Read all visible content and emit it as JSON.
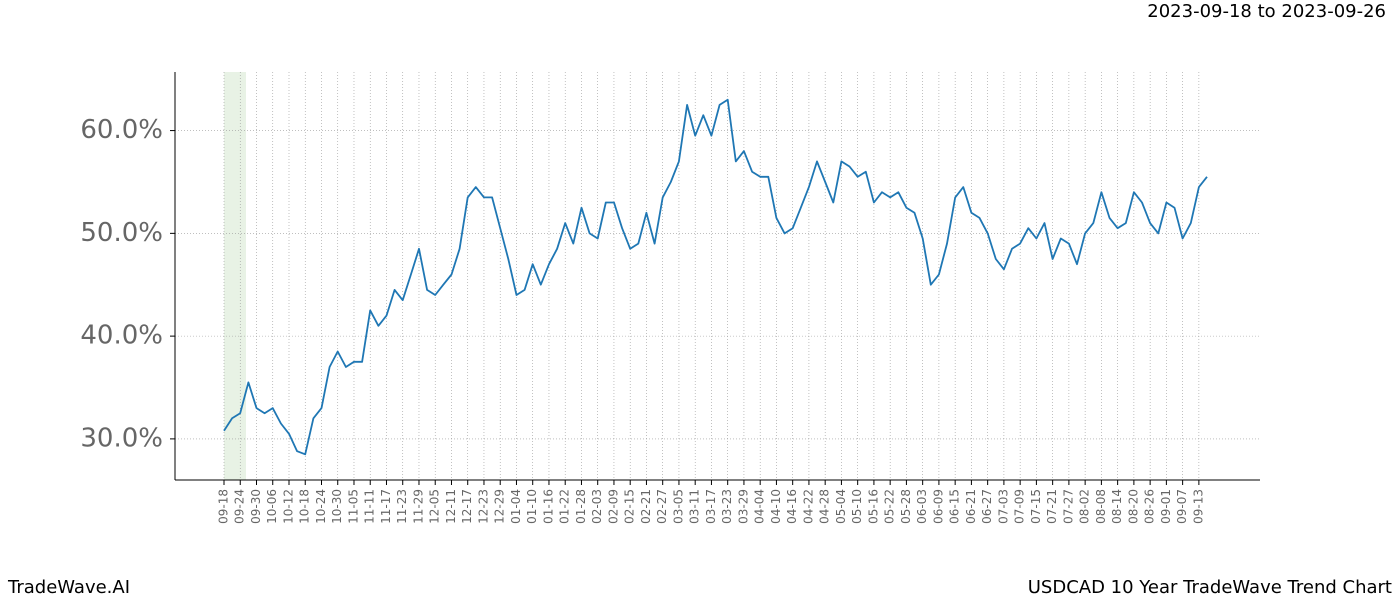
{
  "chart_data": {
    "type": "line",
    "title": "USDCAD 10 Year TradeWave Trend Chart",
    "subtitle": "2023-09-18 to 2023-09-26",
    "brand": "TradeWave.AI",
    "categories": [
      "09-18",
      null,
      "09-24",
      null,
      "09-30",
      null,
      "10-06",
      null,
      "10-12",
      null,
      "10-18",
      null,
      "10-24",
      null,
      "10-30",
      null,
      "11-05",
      null,
      "11-11",
      null,
      "11-17",
      null,
      "11-23",
      null,
      "11-29",
      null,
      "12-05",
      null,
      "12-11",
      null,
      "12-17",
      null,
      "12-23",
      null,
      "12-29",
      null,
      "01-04",
      null,
      "01-10",
      null,
      "01-16",
      null,
      "01-22",
      null,
      "01-28",
      null,
      "02-03",
      null,
      "02-09",
      null,
      "02-15",
      null,
      "02-21",
      null,
      "02-27",
      null,
      "03-05",
      null,
      "03-11",
      null,
      "03-17",
      null,
      "03-23",
      null,
      "03-29",
      null,
      "04-04",
      null,
      "04-10",
      null,
      "04-16",
      null,
      "04-22",
      null,
      "04-28",
      null,
      "05-04",
      null,
      "05-10",
      null,
      "05-16",
      null,
      "05-22",
      null,
      "05-28",
      null,
      "06-03",
      null,
      "06-09",
      null,
      "06-15",
      null,
      "06-21",
      null,
      "06-27",
      null,
      "07-03",
      null,
      "07-09",
      null,
      "07-15",
      null,
      "07-21",
      null,
      "07-27",
      null,
      "08-02",
      null,
      "08-08",
      null,
      "08-14",
      null,
      "08-20",
      null,
      "08-26",
      null,
      "09-01",
      null,
      "09-07",
      null,
      "09-13",
      null
    ],
    "series": [
      {
        "color": "#1f77b4",
        "values": [
          30.8,
          32.0,
          32.5,
          35.5,
          33.0,
          32.5,
          33.0,
          31.5,
          30.5,
          28.8,
          28.5,
          32.0,
          33.0,
          37.0,
          38.5,
          37.0,
          37.5,
          37.5,
          42.5,
          41.0,
          42.0,
          44.5,
          43.5,
          46.0,
          48.5,
          44.5,
          44.0,
          45.0,
          46.0,
          48.5,
          53.5,
          54.5,
          53.5,
          53.5,
          50.5,
          47.5,
          44.0,
          44.5,
          47.0,
          45.0,
          47.0,
          48.5,
          51.0,
          49.0,
          52.5,
          50.0,
          49.5,
          53.0,
          53.0,
          50.5,
          48.5,
          49.0,
          52.0,
          49.0,
          53.5,
          55.0,
          57.0,
          62.5,
          59.5,
          61.5,
          59.5,
          62.5,
          63.0,
          57.0,
          58.0,
          56.0,
          55.5,
          55.5,
          51.5,
          50.0,
          50.5,
          52.5,
          54.5,
          57.0,
          55.0,
          53.0,
          57.0,
          56.5,
          55.5,
          56.0,
          53.0,
          54.0,
          53.5,
          54.0,
          52.5,
          52.0,
          49.5,
          45.0,
          46.0,
          49.0,
          53.5,
          54.5,
          52.0,
          51.5,
          50.0,
          47.5,
          46.5,
          48.5,
          49.0,
          50.5,
          49.5,
          51.0,
          47.5,
          49.5,
          49.0,
          47.0,
          50.0,
          51.0,
          54.0,
          51.5,
          50.5,
          51.0,
          54.0,
          53.0,
          51.0,
          50.0,
          53.0,
          52.5,
          49.5,
          51.0,
          54.5,
          55.5
        ]
      }
    ],
    "ylim": [
      26.0,
      65.7
    ],
    "yticks": [
      {
        "value": 30,
        "label": "30.0%"
      },
      {
        "value": 40,
        "label": "40.0%"
      },
      {
        "value": 50,
        "label": "50.0%"
      },
      {
        "value": 60,
        "label": "60.0%"
      }
    ],
    "grid": true
  }
}
